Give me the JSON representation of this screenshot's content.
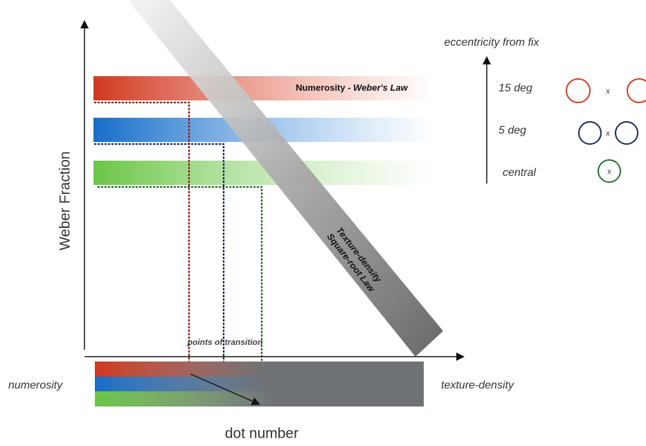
{
  "header": {
    "eccentricity_label": "eccentricity from fix"
  },
  "bands": [
    {
      "title": "Numerosity - ",
      "title_emphasis": "Weber's Law",
      "eccentricity": "15 deg"
    },
    {
      "eccentricity": "5 deg"
    },
    {
      "eccentricity": "central"
    }
  ],
  "stimuli": [
    {
      "mark": "x"
    },
    {
      "mark": "x"
    },
    {
      "mark": "x"
    }
  ],
  "axes": {
    "y_label": "Weber Fraction",
    "x_label": "dot number"
  },
  "texture_band": {
    "line1": "Texture-density",
    "line2": "Square-root Law"
  },
  "transition_label": "points of transition",
  "bottom_bar": {
    "left_label": "numerosity",
    "right_label": "texture-density"
  }
}
